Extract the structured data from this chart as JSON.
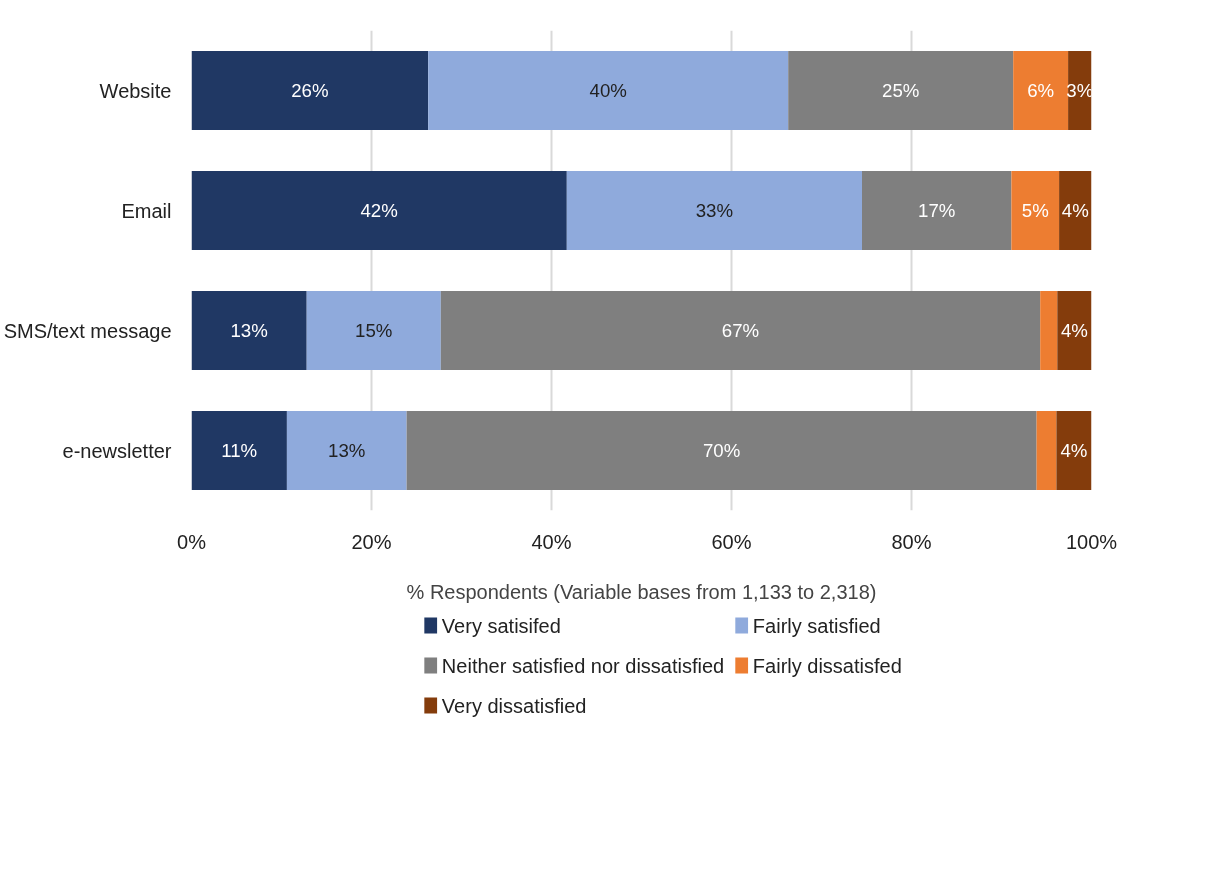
{
  "chart_data": {
    "type": "bar",
    "orientation": "horizontal",
    "stacked": true,
    "xlabel": "% Respondents (Variable bases from 1,133 to 2,318)",
    "categories": [
      "Website",
      "Email",
      "SMS/text message",
      "e-newsletter"
    ],
    "series": [
      {
        "name": "Very satisifed",
        "color": "#203864",
        "values": [
          26.3,
          41.7,
          12.8,
          10.6
        ],
        "value_labels": [
          "26%",
          "42%",
          "13%",
          "11%"
        ]
      },
      {
        "name": "Fairly satisfied",
        "color": "#8faadc",
        "values": [
          40.0,
          32.8,
          14.9,
          13.3
        ],
        "value_labels": [
          "40%",
          "33%",
          "15%",
          "13%"
        ]
      },
      {
        "name": "Neither satisfied nor dissatisfied",
        "color": "#7f7f7f",
        "values": [
          25.0,
          16.6,
          66.6,
          70.0
        ],
        "value_labels": [
          "25%",
          "17%",
          "67%",
          "70%"
        ]
      },
      {
        "name": "Fairly dissatisfed",
        "color": "#ed7d31",
        "values": [
          6.1,
          5.3,
          1.9,
          2.2
        ],
        "value_labels": [
          "6%",
          "5%",
          null,
          null
        ]
      },
      {
        "name": "Very dissatisfied",
        "color": "#843c0c",
        "values": [
          2.6,
          3.6,
          3.8,
          3.9
        ],
        "value_labels": [
          "3%",
          "4%",
          "4%",
          "4%"
        ]
      }
    ],
    "xlim": [
      0,
      100
    ],
    "xticks": [
      {
        "value": 0,
        "label": "0%"
      },
      {
        "value": 20,
        "label": "20%"
      },
      {
        "value": 40,
        "label": "40%"
      },
      {
        "value": 60,
        "label": "60%"
      },
      {
        "value": 80,
        "label": "80%"
      },
      {
        "value": 100,
        "label": "100%"
      }
    ],
    "grid": "x",
    "legend": "bottom"
  }
}
